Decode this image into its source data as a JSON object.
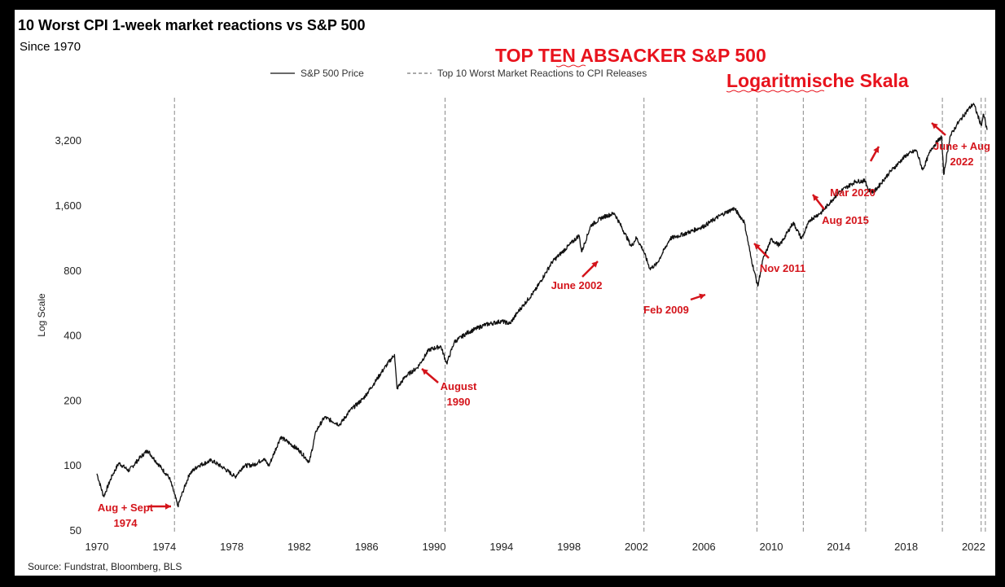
{
  "chart_data": {
    "type": "line",
    "title": "10 Worst CPI 1-week market reactions vs S&P 500",
    "subtitle": "Since 1970",
    "overlay_title": "TOP TEN ABSACKER S&P 500",
    "overlay_subtitle": "Logaritmische Skala",
    "ylabel": "Log Scale",
    "yscale": "log",
    "ylim": [
      50,
      6000
    ],
    "xlim": [
      1969.5,
      2023.2
    ],
    "yticks": [
      50,
      100,
      200,
      400,
      800,
      1600,
      3200
    ],
    "ytick_labels": [
      "50",
      "100",
      "200",
      "400",
      "800",
      "1,600",
      "3,200"
    ],
    "xticks": [
      1970,
      1974,
      1978,
      1982,
      1986,
      1990,
      1994,
      1998,
      2002,
      2006,
      2010,
      2014,
      2018,
      2022
    ],
    "xtick_labels": [
      "1970",
      "1974",
      "1978",
      "1982",
      "1986",
      "1990",
      "1994",
      "1998",
      "2002",
      "2006",
      "2010",
      "2014",
      "2018",
      "2022"
    ],
    "legend": [
      {
        "label": "S&P 500 Price",
        "style": "solid"
      },
      {
        "label": "Top 10 Worst Market Reactions to CPI Releases",
        "style": "dashed"
      }
    ],
    "source": "Source: Fundstrat, Bloomberg, BLS",
    "series": [
      {
        "name": "S&P 500 Price",
        "points": [
          [
            1970.0,
            92
          ],
          [
            1970.4,
            72
          ],
          [
            1970.9,
            90
          ],
          [
            1971.3,
            103
          ],
          [
            1971.9,
            95
          ],
          [
            1972.5,
            108
          ],
          [
            1973.0,
            118
          ],
          [
            1973.5,
            105
          ],
          [
            1973.9,
            96
          ],
          [
            1974.3,
            88
          ],
          [
            1974.6,
            74
          ],
          [
            1974.8,
            65
          ],
          [
            1975.1,
            76
          ],
          [
            1975.5,
            92
          ],
          [
            1976.0,
            100
          ],
          [
            1976.8,
            106
          ],
          [
            1977.5,
            98
          ],
          [
            1978.2,
            89
          ],
          [
            1978.7,
            100
          ],
          [
            1979.3,
            101
          ],
          [
            1979.9,
            108
          ],
          [
            1980.2,
            100
          ],
          [
            1980.9,
            136
          ],
          [
            1981.5,
            126
          ],
          [
            1982.0,
            118
          ],
          [
            1982.6,
            104
          ],
          [
            1983.0,
            145
          ],
          [
            1983.5,
            168
          ],
          [
            1984.4,
            155
          ],
          [
            1985.0,
            180
          ],
          [
            1985.8,
            205
          ],
          [
            1986.5,
            245
          ],
          [
            1987.0,
            280
          ],
          [
            1987.65,
            328
          ],
          [
            1987.8,
            228
          ],
          [
            1988.3,
            260
          ],
          [
            1989.0,
            285
          ],
          [
            1989.7,
            345
          ],
          [
            1990.4,
            358
          ],
          [
            1990.75,
            298
          ],
          [
            1991.2,
            375
          ],
          [
            1992.0,
            415
          ],
          [
            1993.0,
            450
          ],
          [
            1994.0,
            468
          ],
          [
            1994.5,
            456
          ],
          [
            1995.0,
            520
          ],
          [
            1996.0,
            650
          ],
          [
            1997.0,
            880
          ],
          [
            1998.0,
            1050
          ],
          [
            1998.6,
            1170
          ],
          [
            1998.75,
            980
          ],
          [
            1999.3,
            1300
          ],
          [
            2000.0,
            1420
          ],
          [
            2000.7,
            1480
          ],
          [
            2001.3,
            1200
          ],
          [
            2001.7,
            1040
          ],
          [
            2002.0,
            1140
          ],
          [
            2002.4,
            1000
          ],
          [
            2002.8,
            820
          ],
          [
            2003.2,
            860
          ],
          [
            2004.0,
            1130
          ],
          [
            2005.0,
            1200
          ],
          [
            2006.0,
            1290
          ],
          [
            2007.0,
            1450
          ],
          [
            2007.8,
            1560
          ],
          [
            2008.4,
            1350
          ],
          [
            2008.8,
            920
          ],
          [
            2009.2,
            680
          ],
          [
            2009.5,
            900
          ],
          [
            2010.0,
            1120
          ],
          [
            2010.5,
            1050
          ],
          [
            2011.3,
            1340
          ],
          [
            2011.8,
            1130
          ],
          [
            2012.3,
            1380
          ],
          [
            2013.0,
            1500
          ],
          [
            2014.0,
            1850
          ],
          [
            2015.0,
            2080
          ],
          [
            2015.6,
            2090
          ],
          [
            2015.75,
            1900
          ],
          [
            2016.1,
            1860
          ],
          [
            2017.0,
            2280
          ],
          [
            2018.0,
            2750
          ],
          [
            2018.6,
            2900
          ],
          [
            2018.98,
            2350
          ],
          [
            2019.5,
            2950
          ],
          [
            2020.1,
            3350
          ],
          [
            2020.23,
            2240
          ],
          [
            2020.6,
            3350
          ],
          [
            2021.0,
            3800
          ],
          [
            2021.6,
            4400
          ],
          [
            2022.0,
            4780
          ],
          [
            2022.45,
            3780
          ],
          [
            2022.6,
            4250
          ],
          [
            2022.8,
            3600
          ]
        ]
      }
    ],
    "cpi_reactions": [
      1974.6,
      1990.65,
      2002.45,
      2009.15,
      2011.9,
      2015.6,
      2020.15,
      2022.45,
      2022.7
    ],
    "annotations": [
      {
        "lines": [
          "Aug + Sept",
          "1974"
        ],
        "target": [
          1974.7,
          66
        ]
      },
      {
        "lines": [
          "August",
          "1990"
        ],
        "target": [
          1990.65,
          300
        ]
      },
      {
        "lines": [
          "June 2002"
        ],
        "target": [
          2002.45,
          960
        ]
      },
      {
        "lines": [
          "Feb 2009"
        ],
        "target": [
          2009.15,
          720
        ]
      },
      {
        "lines": [
          "Nov 2011"
        ],
        "target": [
          2011.9,
          1150
        ]
      },
      {
        "lines": [
          "Aug 2015"
        ],
        "target": [
          2015.65,
          1880
        ]
      },
      {
        "lines": [
          "Mar 2020"
        ],
        "target": [
          2020.1,
          2450
        ]
      },
      {
        "lines": [
          "June + Aug",
          "2022"
        ],
        "target": [
          2022.75,
          3650
        ]
      }
    ]
  }
}
